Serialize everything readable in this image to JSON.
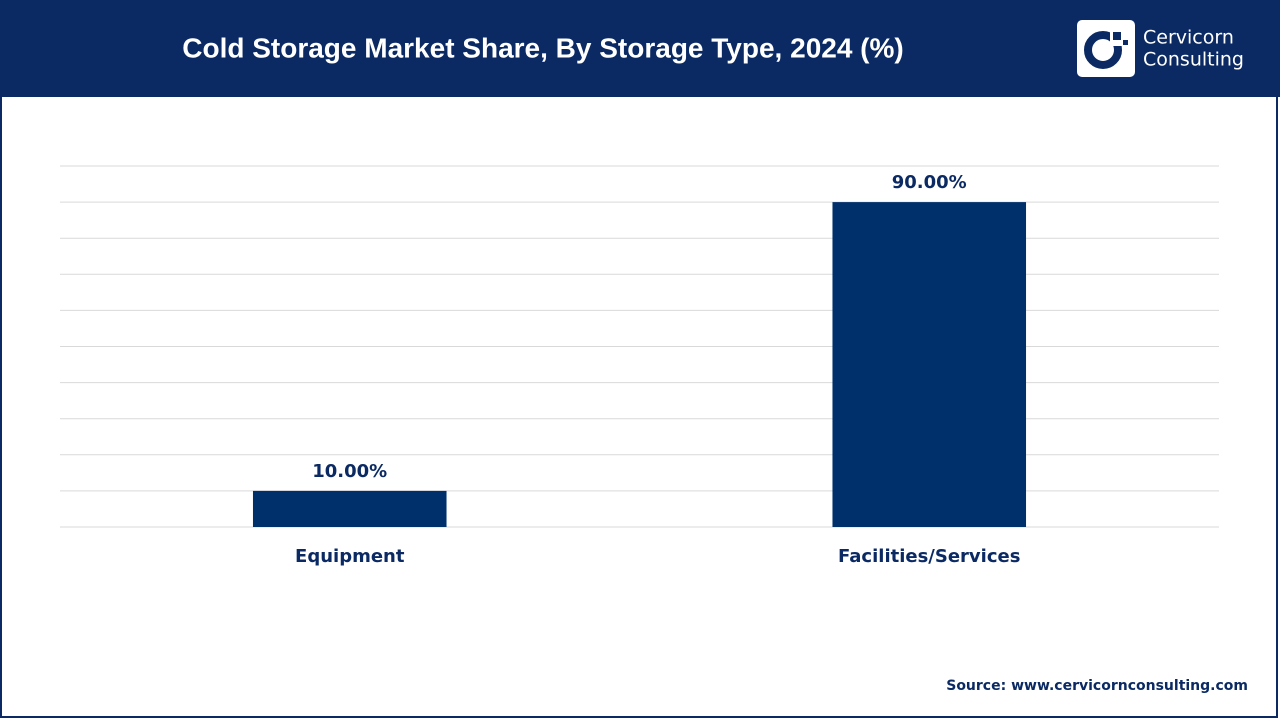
{
  "chart_data": {
    "type": "bar",
    "title": "Cold Storage Market Share, By Storage Type, 2024 (%)",
    "categories": [
      "Equipment",
      "Facilities/Services"
    ],
    "values": [
      10,
      90
    ],
    "value_labels": [
      "10.00%",
      "90.00%"
    ],
    "color": "#00306b",
    "ylim": [
      0,
      100
    ],
    "yticks": [
      0,
      10,
      20,
      30,
      40,
      50,
      60,
      70,
      80,
      90,
      100
    ],
    "grid": true,
    "source": "Source: www.cervicornconsulting.com"
  },
  "logo": {
    "line1": "Cervicorn",
    "line2": "Consulting"
  }
}
